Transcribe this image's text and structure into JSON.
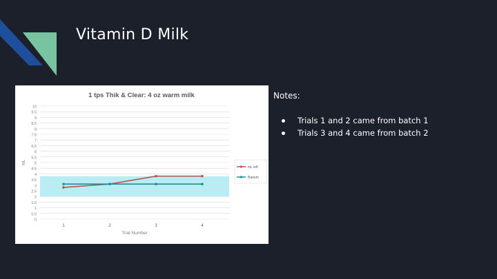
{
  "slide": {
    "title": "Vitamin D Milk",
    "colors": {
      "background": "#1c202b",
      "accent_dark_blue": "#1d4f9c",
      "accent_green": "#78c3a0"
    }
  },
  "notes": {
    "title": "Notes:",
    "items": [
      "Trials 1 and 2 came from batch 1",
      "Trials 3 and 4 came from batch 2"
    ]
  },
  "chart_data": {
    "type": "line",
    "title": "1 tps Thik & Clear: 4 oz warm milk",
    "xlabel": "Trial Number",
    "ylabel": "mL",
    "categories": [
      "1",
      "2",
      "3",
      "4"
    ],
    "ylim": [
      0,
      10
    ],
    "ytick_step": 0.5,
    "grid": true,
    "legend": "right",
    "band": {
      "from": 2,
      "to": 3.8,
      "color": "#9fe8f3"
    },
    "series": [
      {
        "name": "mL left",
        "color": "#c0504d",
        "values": [
          2.8,
          3.1,
          3.8,
          3.8
        ]
      },
      {
        "name": "Barium",
        "color": "#1f8c9c",
        "values": [
          3.1,
          3.1,
          3.1,
          3.1
        ]
      }
    ]
  }
}
